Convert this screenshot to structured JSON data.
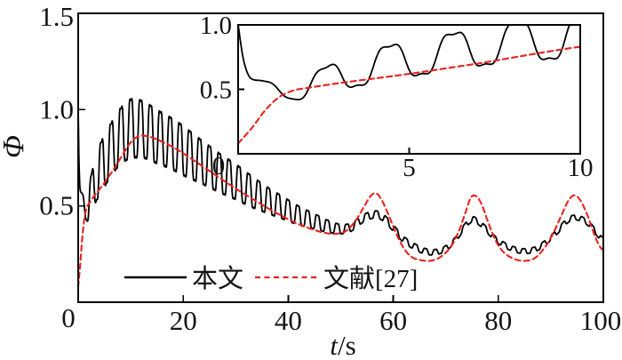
{
  "figure": {
    "background": "#ffffff",
    "axis_color": "#000000",
    "text_color": "#141414"
  },
  "main_axes": {
    "ylabel": "Φ",
    "xlabel": "t/s",
    "xlabel_var": "t",
    "xlabel_unit": "/s",
    "origin_label": "0",
    "x_ticks": [
      {
        "value": 20,
        "label": "20"
      },
      {
        "value": 40,
        "label": "40"
      },
      {
        "value": 60,
        "label": "60"
      },
      {
        "value": 80,
        "label": "80"
      },
      {
        "value": 100,
        "label": "100"
      }
    ],
    "y_ticks": [
      {
        "value": 0.5,
        "label": "0.5"
      },
      {
        "value": 1.0,
        "label": "1.0"
      },
      {
        "value": 1.5,
        "label": "1.5"
      }
    ]
  },
  "inset_axes": {
    "origin_label": "0",
    "x_ticks": [
      {
        "value": 5,
        "label": "5"
      },
      {
        "value": 10,
        "label": "10"
      }
    ],
    "y_ticks": [
      {
        "value": 0.5,
        "label": "0.5"
      },
      {
        "value": 1.0,
        "label": "1.0"
      }
    ]
  },
  "legend": {
    "items": [
      {
        "label": "本文",
        "style": "solid",
        "color": "#000000"
      },
      {
        "label": "文献[27]",
        "style": "dashed",
        "color": "#e8231e"
      }
    ]
  },
  "chart_data": {
    "type": "line",
    "title": "",
    "xlabel": "t/s",
    "ylabel": "Φ",
    "grid": false,
    "legend_position": "lower center inside axes",
    "main_view": {
      "xlim": [
        0,
        100
      ],
      "ylim": [
        0,
        1.5
      ]
    },
    "inset_view": {
      "xlim": [
        0,
        10
      ],
      "ylim": [
        0,
        1.0
      ],
      "position": "upper right"
    },
    "series": [
      {
        "name": "本文",
        "color": "#000000",
        "style": "solid",
        "model": "center_plus_oscillation",
        "oscillation": {
          "period": 1.87,
          "phase_peak_t": 2.55,
          "third_harmonic": 0.18
        },
        "center": [
          [
            0,
            1.0
          ],
          [
            0.15,
            0.74
          ],
          [
            0.35,
            0.58
          ],
          [
            0.7,
            0.54
          ],
          [
            1.1,
            0.51
          ],
          [
            1.7,
            0.48
          ],
          [
            2.5,
            0.57
          ],
          [
            4,
            0.68
          ],
          [
            6,
            0.78
          ],
          [
            8,
            0.86
          ],
          [
            10,
            0.9
          ],
          [
            12.5,
            0.895
          ],
          [
            15,
            0.86
          ],
          [
            18,
            0.82
          ],
          [
            21,
            0.77
          ],
          [
            24,
            0.72
          ],
          [
            27,
            0.67
          ],
          [
            30,
            0.625
          ],
          [
            33,
            0.575
          ],
          [
            36,
            0.53
          ],
          [
            39,
            0.49
          ],
          [
            42,
            0.45
          ],
          [
            45,
            0.42
          ],
          [
            47.5,
            0.395
          ],
          [
            50,
            0.38
          ],
          [
            52,
            0.39
          ],
          [
            54,
            0.43
          ],
          [
            55.5,
            0.45
          ],
          [
            57,
            0.455
          ],
          [
            58.5,
            0.43
          ],
          [
            60,
            0.385
          ],
          [
            62,
            0.325
          ],
          [
            64,
            0.29
          ],
          [
            66,
            0.265
          ],
          [
            68,
            0.26
          ],
          [
            70,
            0.28
          ],
          [
            72,
            0.33
          ],
          [
            73.5,
            0.39
          ],
          [
            75,
            0.43
          ],
          [
            76,
            0.42
          ],
          [
            77.5,
            0.385
          ],
          [
            79,
            0.34
          ],
          [
            81,
            0.3
          ],
          [
            83,
            0.275
          ],
          [
            85,
            0.265
          ],
          [
            87,
            0.275
          ],
          [
            89,
            0.31
          ],
          [
            91,
            0.36
          ],
          [
            93,
            0.42
          ],
          [
            94.5,
            0.44
          ],
          [
            96,
            0.43
          ],
          [
            97.5,
            0.4
          ],
          [
            99,
            0.35
          ],
          [
            100,
            0.32
          ]
        ],
        "amplitude": [
          [
            0,
            0
          ],
          [
            0.5,
            0.025
          ],
          [
            1.5,
            0.06
          ],
          [
            2.5,
            0.11
          ],
          [
            4,
            0.15
          ],
          [
            6,
            0.16
          ],
          [
            8,
            0.17
          ],
          [
            10,
            0.18
          ],
          [
            13,
            0.17
          ],
          [
            16,
            0.16
          ],
          [
            20,
            0.15
          ],
          [
            24,
            0.13
          ],
          [
            28,
            0.115
          ],
          [
            32,
            0.1
          ],
          [
            36,
            0.08
          ],
          [
            40,
            0.065
          ],
          [
            44,
            0.05
          ],
          [
            48,
            0.035
          ],
          [
            52,
            0.025
          ],
          [
            56,
            0.022
          ],
          [
            60,
            0.02
          ],
          [
            70,
            0.016
          ],
          [
            100,
            0.015
          ]
        ]
      },
      {
        "name": "文献[27]",
        "color": "#e8231e",
        "style": "dashed",
        "model": "smooth",
        "points": [
          [
            0,
            0.08
          ],
          [
            0.4,
            0.2
          ],
          [
            0.8,
            0.34
          ],
          [
            1.2,
            0.44
          ],
          [
            1.6,
            0.49
          ],
          [
            2,
            0.51
          ],
          [
            3,
            0.55
          ],
          [
            4,
            0.585
          ],
          [
            5,
            0.62
          ],
          [
            6,
            0.66
          ],
          [
            7,
            0.7
          ],
          [
            8,
            0.745
          ],
          [
            9,
            0.79
          ],
          [
            10,
            0.83
          ],
          [
            11,
            0.855
          ],
          [
            12,
            0.865
          ],
          [
            13.5,
            0.86
          ],
          [
            15,
            0.845
          ],
          [
            17,
            0.82
          ],
          [
            19,
            0.79
          ],
          [
            21,
            0.755
          ],
          [
            24,
            0.7
          ],
          [
            27,
            0.645
          ],
          [
            30,
            0.59
          ],
          [
            33,
            0.54
          ],
          [
            36,
            0.49
          ],
          [
            39,
            0.445
          ],
          [
            42,
            0.405
          ],
          [
            45,
            0.375
          ],
          [
            47,
            0.36
          ],
          [
            49,
            0.355
          ],
          [
            51,
            0.37
          ],
          [
            53,
            0.43
          ],
          [
            54.5,
            0.5
          ],
          [
            55.8,
            0.555
          ],
          [
            56.8,
            0.565
          ],
          [
            57.8,
            0.53
          ],
          [
            59,
            0.46
          ],
          [
            60.5,
            0.36
          ],
          [
            62,
            0.28
          ],
          [
            63.5,
            0.235
          ],
          [
            65,
            0.22
          ],
          [
            67,
            0.215
          ],
          [
            69,
            0.235
          ],
          [
            71,
            0.29
          ],
          [
            72.5,
            0.37
          ],
          [
            73.8,
            0.47
          ],
          [
            74.8,
            0.545
          ],
          [
            75.8,
            0.55
          ],
          [
            76.8,
            0.51
          ],
          [
            78,
            0.42
          ],
          [
            79.5,
            0.32
          ],
          [
            81,
            0.26
          ],
          [
            83,
            0.225
          ],
          [
            85,
            0.215
          ],
          [
            87,
            0.23
          ],
          [
            89,
            0.29
          ],
          [
            90.5,
            0.36
          ],
          [
            92,
            0.45
          ],
          [
            93.4,
            0.53
          ],
          [
            94.5,
            0.555
          ],
          [
            95.6,
            0.53
          ],
          [
            97,
            0.45
          ],
          [
            98.3,
            0.35
          ],
          [
            99.3,
            0.29
          ],
          [
            100,
            0.27
          ]
        ]
      }
    ]
  }
}
